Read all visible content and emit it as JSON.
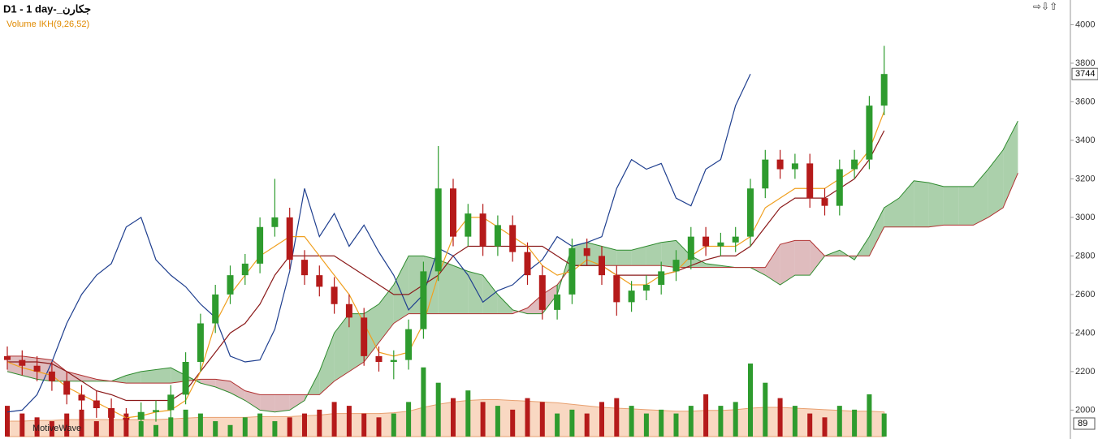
{
  "chart_data": {
    "type": "candlestick",
    "title": "D1 - 1 day-_جکارن",
    "subtitle": "Volume IKH(9,26,52)",
    "watermark": "MotiveWave",
    "last_price": 3744,
    "volume_badge": 89,
    "ylim": [
      1850,
      4128
    ],
    "yticks": [
      2000,
      2200,
      2400,
      2600,
      2800,
      3000,
      3200,
      3400,
      3600,
      3800,
      4000
    ],
    "up_color": "#2e9b2e",
    "down_color": "#b51a1a",
    "open": [
      2280,
      2260,
      2230,
      2200,
      2150,
      2080,
      2050,
      2010,
      1960,
      1950,
      1990,
      2000,
      2080,
      2250,
      2450,
      2600,
      2700,
      2760,
      2950,
      3000,
      2780,
      2700,
      2640,
      2550,
      2480,
      2280,
      2250,
      2260,
      2420,
      2720,
      3150,
      2900,
      3020,
      2850,
      2960,
      2820,
      2700,
      2520,
      2600,
      2840,
      2800,
      2700,
      2560,
      2620,
      2650,
      2720,
      2780,
      2900,
      2850,
      2870,
      2900,
      3150,
      3300,
      3250,
      3280,
      3100,
      3060,
      3250,
      3300,
      3580
    ],
    "high": [
      2330,
      2310,
      2280,
      2250,
      2200,
      2130,
      2100,
      2060,
      2010,
      2040,
      2050,
      2130,
      2300,
      2500,
      2650,
      2750,
      2810,
      3000,
      3200,
      3050,
      2830,
      2750,
      2690,
      2600,
      2530,
      2330,
      2310,
      2470,
      2770,
      3370,
      3200,
      3070,
      3070,
      3010,
      3010,
      2870,
      2750,
      2650,
      2890,
      2890,
      2850,
      2750,
      2670,
      2700,
      2770,
      2830,
      2950,
      2950,
      2920,
      2950,
      3200,
      3350,
      3350,
      3330,
      3330,
      3150,
      3300,
      3350,
      3630,
      3890
    ],
    "low": [
      2210,
      2180,
      2150,
      2100,
      2030,
      2000,
      1960,
      1910,
      1900,
      1900,
      1940,
      1950,
      2030,
      2200,
      2400,
      2550,
      2650,
      2710,
      2900,
      2730,
      2650,
      2590,
      2500,
      2430,
      2230,
      2200,
      2160,
      2210,
      2370,
      2670,
      2850,
      2850,
      2800,
      2800,
      2770,
      2650,
      2470,
      2470,
      2550,
      2750,
      2650,
      2490,
      2510,
      2570,
      2600,
      2670,
      2730,
      2800,
      2800,
      2820,
      2850,
      3100,
      3200,
      3200,
      3050,
      3010,
      3010,
      3200,
      3250,
      3530
    ],
    "close": [
      2260,
      2230,
      2200,
      2150,
      2080,
      2050,
      2010,
      1960,
      1950,
      1990,
      2000,
      2080,
      2250,
      2450,
      2600,
      2700,
      2760,
      2950,
      3000,
      2780,
      2700,
      2640,
      2550,
      2480,
      2280,
      2250,
      2260,
      2420,
      2720,
      3150,
      2900,
      3020,
      2850,
      2960,
      2820,
      2700,
      2520,
      2600,
      2840,
      2800,
      2700,
      2560,
      2620,
      2650,
      2720,
      2780,
      2900,
      2850,
      2870,
      2900,
      3150,
      3300,
      3250,
      3280,
      3100,
      3060,
      3250,
      3300,
      3580,
      3744
    ],
    "volume": [
      40,
      30,
      25,
      20,
      30,
      35,
      20,
      25,
      30,
      20,
      15,
      25,
      35,
      30,
      20,
      15,
      25,
      30,
      20,
      25,
      30,
      35,
      45,
      40,
      30,
      25,
      30,
      45,
      90,
      70,
      50,
      60,
      45,
      40,
      35,
      50,
      45,
      30,
      35,
      30,
      45,
      50,
      40,
      30,
      35,
      30,
      40,
      55,
      40,
      45,
      95,
      70,
      50,
      40,
      30,
      25,
      40,
      35,
      55,
      30
    ],
    "volume_ma": {
      "color": "#e8a070",
      "values": [
        20,
        20,
        21,
        21,
        22,
        22,
        22,
        22,
        22,
        22,
        22,
        23,
        24,
        25,
        25,
        25,
        25,
        26,
        26,
        26,
        27,
        28,
        30,
        30,
        30,
        30,
        31,
        33,
        38,
        42,
        45,
        47,
        48,
        48,
        47,
        46,
        45,
        44,
        42,
        40,
        38,
        37,
        36,
        35,
        34,
        33,
        33,
        34,
        34,
        35,
        37,
        38,
        38,
        37,
        36,
        35,
        34,
        33,
        33,
        32
      ]
    },
    "tenkan": {
      "color": "#f0a020",
      "values": [
        2250,
        2220,
        2200,
        2180,
        2120,
        2080,
        2040,
        2000,
        1960,
        1970,
        1990,
        2000,
        2050,
        2200,
        2450,
        2600,
        2700,
        2800,
        2850,
        2900,
        2900,
        2800,
        2700,
        2600,
        2450,
        2300,
        2280,
        2300,
        2450,
        2700,
        2900,
        3000,
        3000,
        2950,
        2900,
        2850,
        2750,
        2700,
        2720,
        2780,
        2750,
        2700,
        2650,
        2650,
        2700,
        2720,
        2800,
        2850,
        2850,
        2850,
        2900,
        3050,
        3100,
        3150,
        3150,
        3150,
        3200,
        3250,
        3350,
        3550
      ]
    },
    "kijun": {
      "color": "#8b1a1a",
      "values": [
        2250,
        2250,
        2250,
        2240,
        2200,
        2150,
        2100,
        2080,
        2050,
        2050,
        2050,
        2050,
        2100,
        2200,
        2300,
        2400,
        2450,
        2550,
        2700,
        2800,
        2800,
        2800,
        2800,
        2750,
        2700,
        2650,
        2600,
        2600,
        2650,
        2700,
        2800,
        2850,
        2850,
        2850,
        2850,
        2850,
        2850,
        2800,
        2750,
        2750,
        2750,
        2700,
        2700,
        2700,
        2700,
        2720,
        2750,
        2780,
        2800,
        2800,
        2850,
        2950,
        3050,
        3100,
        3100,
        3100,
        3150,
        3200,
        3300,
        3450
      ]
    },
    "chikou": {
      "color": "#1f3f8f",
      "values": [
        1990,
        2000,
        2080,
        2250,
        2450,
        2600,
        2700,
        2760,
        2950,
        3000,
        2780,
        2700,
        2640,
        2550,
        2480,
        2280,
        2250,
        2260,
        2420,
        2720,
        3150,
        2900,
        3020,
        2850,
        2960,
        2820,
        2700,
        2520,
        2600,
        2840,
        2800,
        2700,
        2560,
        2620,
        2650,
        2720,
        2780,
        2900,
        2850,
        2870,
        2900,
        3150,
        3300,
        3250,
        3280,
        3100,
        3060,
        3250,
        3300,
        3580,
        3744
      ]
    },
    "span_a": {
      "color": "#2e8b2e",
      "values": [
        2200,
        2180,
        2160,
        2150,
        2150,
        2150,
        2150,
        2150,
        2180,
        2200,
        2210,
        2220,
        2180,
        2140,
        2120,
        2090,
        2050,
        2000,
        1990,
        2000,
        2050,
        2200,
        2400,
        2500,
        2500,
        2550,
        2650,
        2800,
        2800,
        2780,
        2750,
        2720,
        2700,
        2600,
        2520,
        2500,
        2500,
        2600,
        2850,
        2870,
        2850,
        2830,
        2830,
        2850,
        2870,
        2880,
        2800,
        2760,
        2750,
        2740,
        2740,
        2700,
        2650,
        2700,
        2700,
        2800,
        2830,
        2780,
        2900,
        3050,
        3100,
        3190,
        3180,
        3160,
        3160,
        3160,
        3250,
        3350,
        3500
      ]
    },
    "span_b": {
      "color": "#b03030",
      "values": [
        2280,
        2280,
        2270,
        2260,
        2200,
        2180,
        2160,
        2150,
        2140,
        2140,
        2140,
        2140,
        2150,
        2160,
        2160,
        2150,
        2100,
        2080,
        2080,
        2080,
        2080,
        2080,
        2150,
        2200,
        2250,
        2350,
        2450,
        2500,
        2500,
        2500,
        2500,
        2500,
        2500,
        2500,
        2500,
        2530,
        2600,
        2650,
        2750,
        2750,
        2750,
        2750,
        2750,
        2750,
        2750,
        2740,
        2740,
        2740,
        2740,
        2740,
        2740,
        2740,
        2860,
        2880,
        2880,
        2800,
        2800,
        2800,
        2800,
        2950,
        2950,
        2950,
        2950,
        2960,
        2960,
        2960,
        3000,
        3050,
        3230
      ]
    },
    "bull_cloud_color": "#8fc08f",
    "bear_cloud_color": "#d4a5a8"
  }
}
